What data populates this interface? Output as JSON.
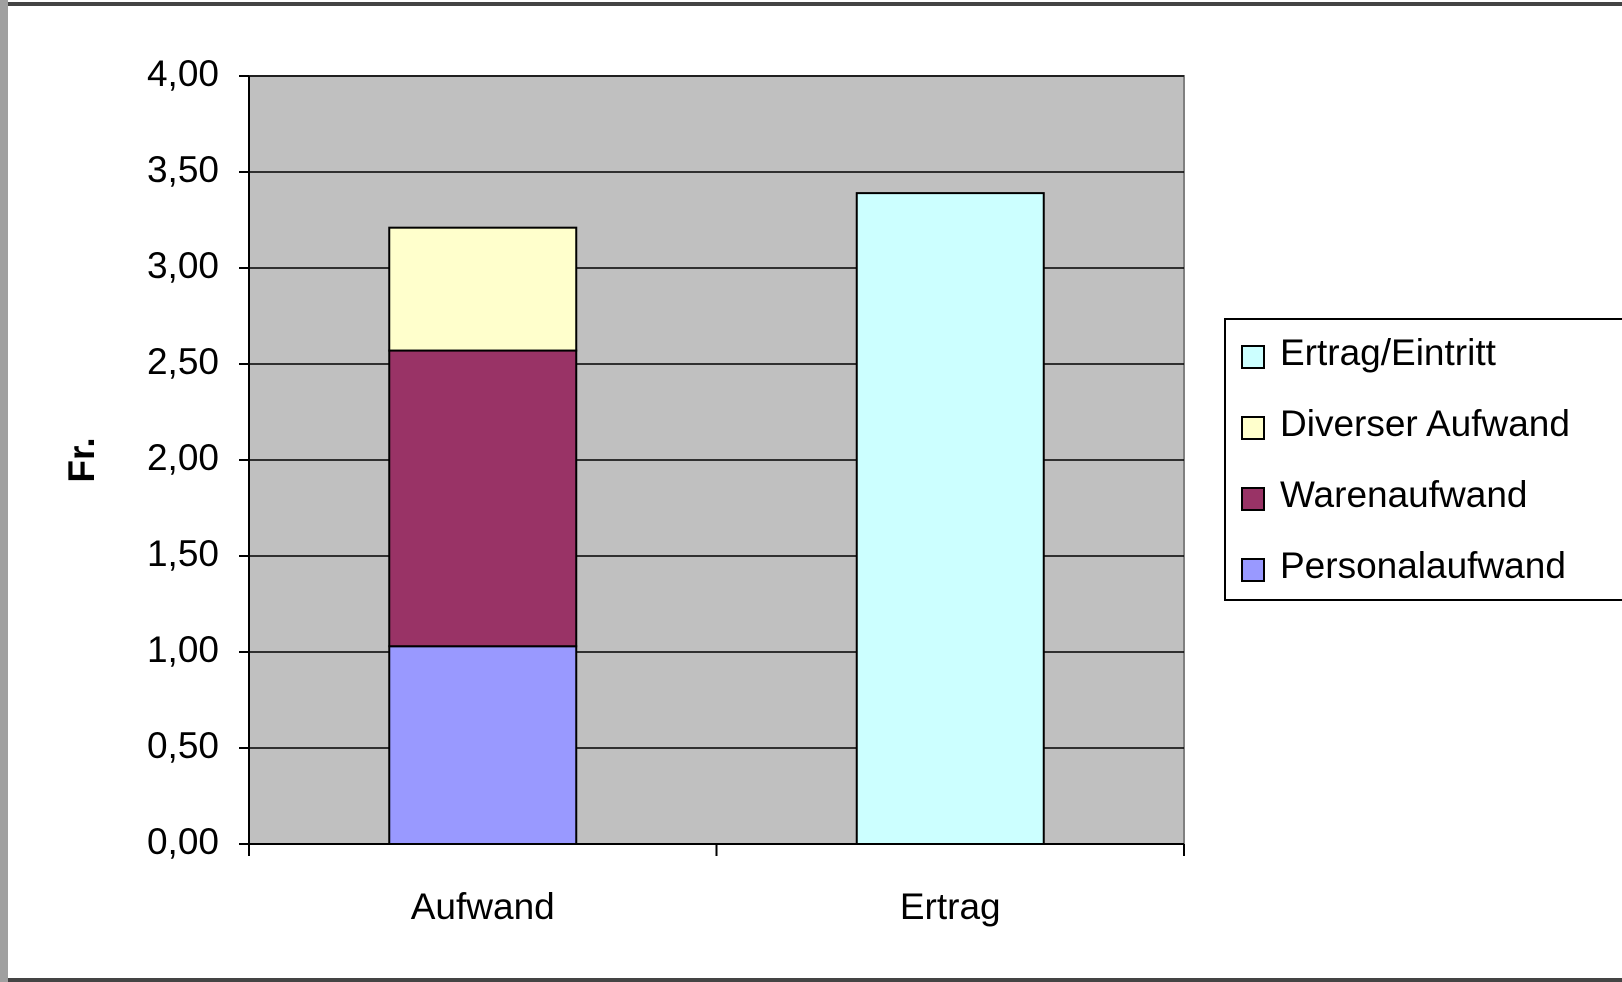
{
  "chart_data": {
    "type": "stacked_bar",
    "y_label": "Fr.",
    "categories": [
      "Aufwand",
      "Ertrag"
    ],
    "series": [
      {
        "name": "Personalaufwand",
        "color": "#9999ff",
        "values": [
          1.03,
          null
        ]
      },
      {
        "name": "Warenaufwand",
        "color": "#993366",
        "values": [
          1.54,
          null
        ]
      },
      {
        "name": "Diverser Aufwand",
        "color": "#ffffcc",
        "values": [
          0.64,
          null
        ]
      },
      {
        "name": "Ertrag/Eintritt",
        "color": "#ccffff",
        "values": [
          null,
          3.39
        ]
      }
    ],
    "ylim": [
      0,
      4
    ],
    "yticks": [
      {
        "value": 0,
        "label": "0,00"
      },
      {
        "value": 0.5,
        "label": "0,50"
      },
      {
        "value": 1,
        "label": "1,00"
      },
      {
        "value": 1.5,
        "label": "1,50"
      },
      {
        "value": 2,
        "label": "2,00"
      },
      {
        "value": 2.5,
        "label": "2,50"
      },
      {
        "value": 3,
        "label": "3,00"
      },
      {
        "value": 3.5,
        "label": "3,50"
      },
      {
        "value": 4,
        "label": "4,00"
      }
    ],
    "grid": true,
    "plot_background": "#c0c0c0",
    "legend": "right"
  }
}
